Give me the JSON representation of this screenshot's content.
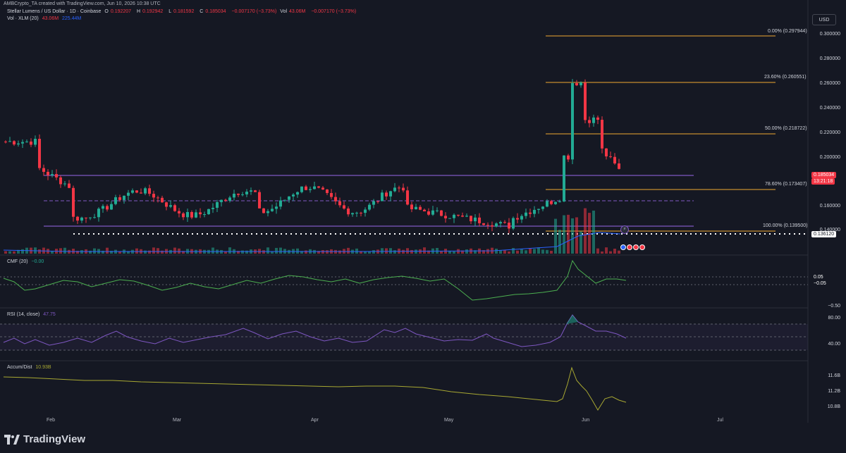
{
  "header": {
    "text": "AMBCrypto_TA created with TradingView.com, Jun 10, 2026 10:38 UTC"
  },
  "legend": {
    "symbol": "Stellar Lumens / US Dollar · 1D · Coinbase",
    "o_label": "O",
    "o": "0.192207",
    "h_label": "H",
    "h": "0.192942",
    "l_label": "L",
    "l": "0.181592",
    "c_label": "C",
    "c": "0.185034",
    "change": "−0.007170 (−3.73%)",
    "vol_label": "Vol",
    "vol": "43.06M",
    "vol_change": "−0.007170 (−3.73%)",
    "vol_ma_label": "Vol · XLM (20)",
    "vol_ma_value": "43.06M",
    "vol_ma_avg": "225.44M"
  },
  "currency_button": "USD",
  "price_axis": [
    "0.300000",
    "0.280000",
    "0.260000",
    "0.240000",
    "0.220000",
    "0.200000",
    "0.160000",
    "0.140000"
  ],
  "price_tags": {
    "last": "0.185034",
    "countdown": "13:21:18",
    "support": "0.136120"
  },
  "fib_levels": [
    {
      "label": "0.00% (0.297944)"
    },
    {
      "label": "23.60% (0.260551)"
    },
    {
      "label": "50.00% (0.218722)"
    },
    {
      "label": "78.60% (0.173407)"
    },
    {
      "label": "100.00% (0.139500)"
    }
  ],
  "cmf": {
    "title": "CMF (20)",
    "value": "−0.00",
    "axis": [
      "0.05",
      "−0.05",
      "−0.50"
    ]
  },
  "rsi": {
    "title": "RSI (14, close)",
    "value": "47.75",
    "axis": [
      "80.00",
      "40.00"
    ]
  },
  "ad": {
    "title": "Accum/Dist",
    "value": "10.93B",
    "axis": [
      "11.6B",
      "11.2B",
      "10.8B"
    ]
  },
  "x_axis": [
    "Feb",
    "Mar",
    "Apr",
    "May",
    "Jun",
    "Jul"
  ],
  "brand": "TradingView",
  "colors": {
    "up": "#22ab94",
    "down": "#f23645",
    "fib": "#f0a830",
    "range": "#7e57c2",
    "bg": "#151823"
  }
}
